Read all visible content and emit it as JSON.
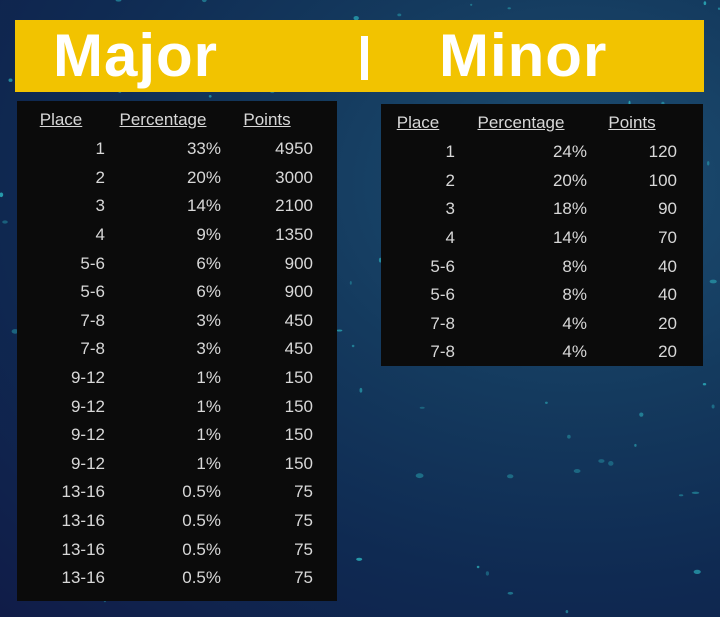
{
  "banner": {
    "major_title": "Major",
    "separator": "|",
    "minor_title": "Minor"
  },
  "major_table": {
    "headers": [
      "Place",
      "Percentage",
      "Points"
    ],
    "rows": [
      [
        "1",
        "33%",
        "4950"
      ],
      [
        "2",
        "20%",
        "3000"
      ],
      [
        "3",
        "14%",
        "2100"
      ],
      [
        "4",
        "9%",
        "1350"
      ],
      [
        "5-6",
        "6%",
        "900"
      ],
      [
        "5-6",
        "6%",
        "900"
      ],
      [
        "7-8",
        "3%",
        "450"
      ],
      [
        "7-8",
        "3%",
        "450"
      ],
      [
        "9-12",
        "1%",
        "150"
      ],
      [
        "9-12",
        "1%",
        "150"
      ],
      [
        "9-12",
        "1%",
        "150"
      ],
      [
        "9-12",
        "1%",
        "150"
      ],
      [
        "13-16",
        "0.5%",
        "75"
      ],
      [
        "13-16",
        "0.5%",
        "75"
      ],
      [
        "13-16",
        "0.5%",
        "75"
      ],
      [
        "13-16",
        "0.5%",
        "75"
      ]
    ]
  },
  "minor_table": {
    "headers": [
      "Place",
      "Percentage",
      "Points"
    ],
    "rows": [
      [
        "1",
        "24%",
        "120"
      ],
      [
        "2",
        "20%",
        "100"
      ],
      [
        "3",
        "18%",
        "90"
      ],
      [
        "4",
        "14%",
        "70"
      ],
      [
        "5-6",
        "8%",
        "40"
      ],
      [
        "5-6",
        "8%",
        "40"
      ],
      [
        "7-8",
        "4%",
        "20"
      ],
      [
        "7-8",
        "4%",
        "20"
      ]
    ]
  },
  "colors": {
    "banner": "#f2c300",
    "panel": "#0b0b0b",
    "text": "#d8d8d8",
    "speckle": "#2aa7b5"
  }
}
